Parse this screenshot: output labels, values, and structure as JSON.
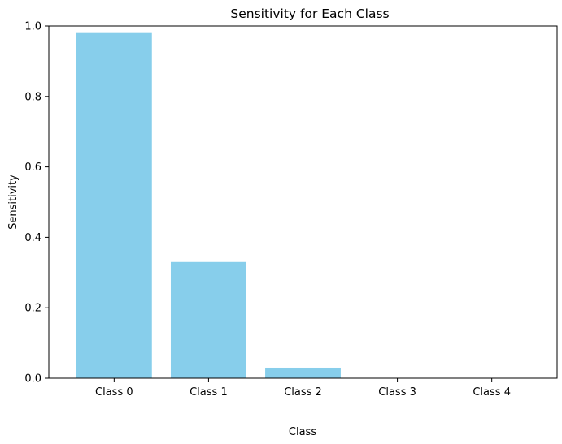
{
  "chart_data": {
    "type": "bar",
    "title": "Sensitivity for Each Class",
    "xlabel": "Class",
    "ylabel": "Sensitivity",
    "categories": [
      "Class 0",
      "Class 1",
      "Class 2",
      "Class 3",
      "Class 4"
    ],
    "values": [
      0.98,
      0.33,
      0.03,
      0.0,
      0.0
    ],
    "ylim": [
      0,
      1.0
    ],
    "yticks": [
      "0.0",
      "0.2",
      "0.4",
      "0.6",
      "0.8",
      "1.0"
    ],
    "bar_color": "#87ceeb",
    "grid": false,
    "legend": "none"
  }
}
